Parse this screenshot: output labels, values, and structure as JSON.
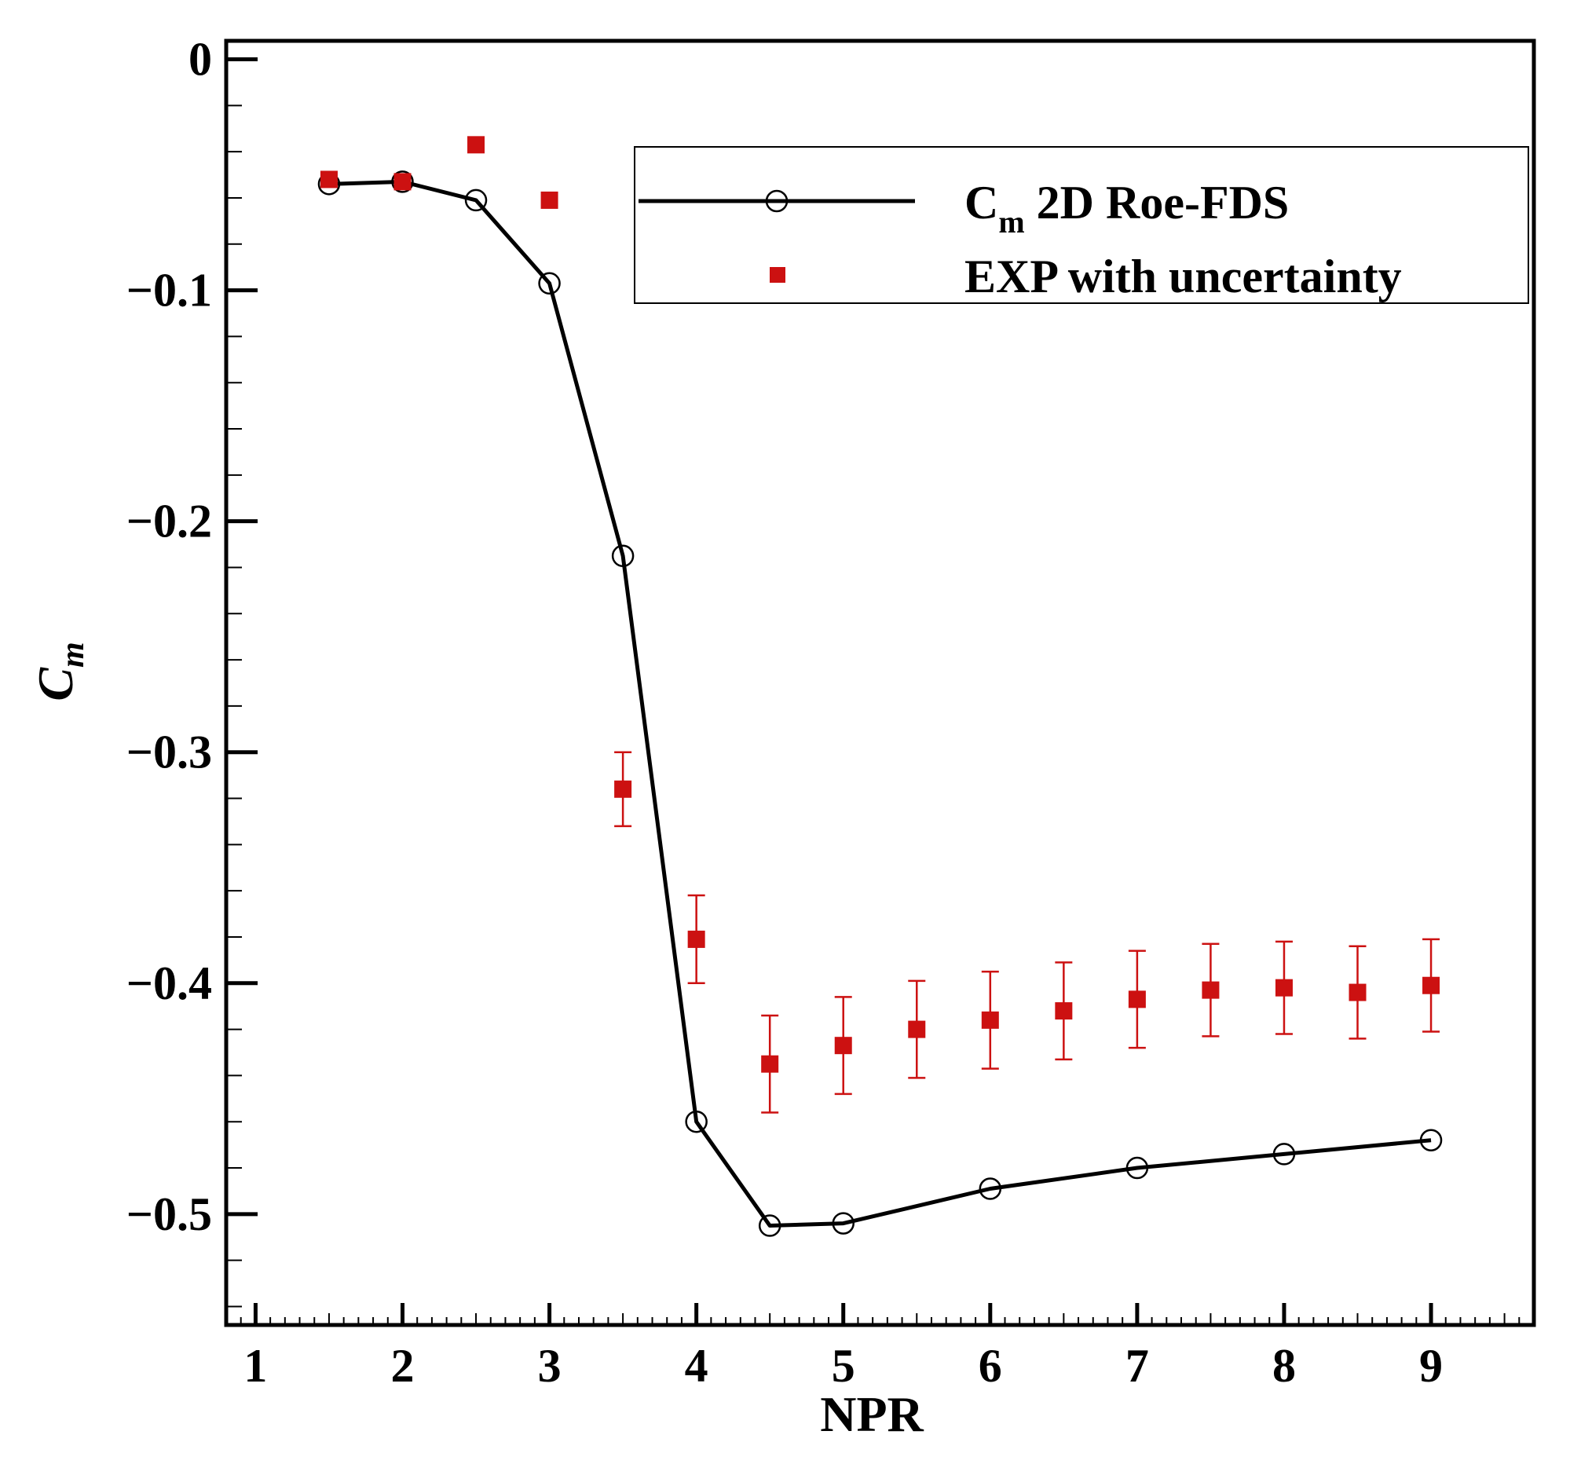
{
  "chart_data": {
    "type": "line",
    "xlabel": "NPR",
    "ylabel": {
      "base": "C",
      "subscript": "m"
    },
    "xlim": [
      0.8,
      9.7
    ],
    "ylim": [
      -0.548,
      0.008
    ],
    "x_ticks": [
      1,
      2,
      3,
      4,
      5,
      6,
      7,
      8,
      9
    ],
    "x_tick_labels": [
      "1",
      "2",
      "3",
      "4",
      "5",
      "6",
      "7",
      "8",
      "9"
    ],
    "y_ticks": [
      0,
      -0.1,
      -0.2,
      -0.3,
      -0.4,
      -0.5
    ],
    "y_tick_labels": [
      "0",
      "−0.1",
      "−0.2",
      "−0.3",
      "−0.4",
      "−0.5"
    ],
    "grid": false,
    "legend_position": "top-right",
    "series": [
      {
        "name": "Cm 2D Roe-FDS",
        "legend_label": {
          "base": "C",
          "subscript": "m",
          "rest": " 2D Roe-FDS"
        },
        "style": "line-open-circle",
        "color": "#000000",
        "x": [
          1.5,
          2.0,
          2.5,
          3.0,
          3.5,
          4.0,
          4.5,
          5.0,
          6.0,
          7.0,
          8.0,
          9.0
        ],
        "y": [
          -0.054,
          -0.053,
          -0.061,
          -0.097,
          -0.215,
          -0.46,
          -0.505,
          -0.504,
          -0.489,
          -0.48,
          -0.474,
          -0.468
        ]
      },
      {
        "name": "EXP with uncertainty",
        "legend_label": {
          "base": "EXP with uncertainty",
          "subscript": "",
          "rest": ""
        },
        "style": "filled-square-errorbar",
        "color": "#cc1111",
        "x": [
          1.5,
          2.0,
          2.5,
          3.0,
          3.5,
          4.0,
          4.5,
          5.0,
          5.5,
          6.0,
          6.5,
          7.0,
          7.5,
          8.0,
          8.5,
          9.0
        ],
        "y": [
          -0.052,
          -0.053,
          -0.037,
          -0.061,
          -0.316,
          -0.381,
          -0.435,
          -0.427,
          -0.42,
          -0.416,
          -0.412,
          -0.407,
          -0.403,
          -0.402,
          -0.404,
          -0.401
        ],
        "error": [
          null,
          null,
          null,
          null,
          0.016,
          0.019,
          0.021,
          0.021,
          0.021,
          0.021,
          0.021,
          0.021,
          0.02,
          0.02,
          0.02,
          0.02
        ]
      }
    ]
  }
}
